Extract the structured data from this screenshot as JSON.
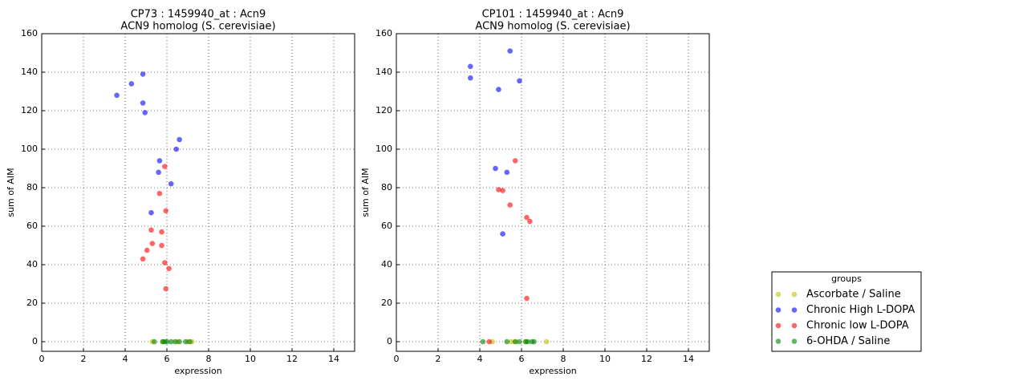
{
  "chart_data": [
    {
      "type": "scatter",
      "title": "CP73 : 1459940_at : Acn9",
      "subtitle": "ACN9 homolog (S. cerevisiae)",
      "x_label": "expression",
      "y_label": "sum of AIM",
      "xlim": [
        0,
        15
      ],
      "ylim": [
        -5,
        160
      ],
      "xticks": [
        0,
        2,
        4,
        6,
        8,
        10,
        12,
        14
      ],
      "yticks": [
        0,
        20,
        40,
        60,
        80,
        100,
        120,
        140,
        160
      ],
      "grid": true,
      "series": [
        {
          "color": "#bfbf00",
          "x": [
            5.3,
            5.8,
            6.5,
            7.0,
            7.2
          ],
          "y": [
            0,
            0,
            0,
            0,
            0
          ]
        },
        {
          "color": "#0000ff",
          "x": [
            3.6,
            4.3,
            4.85,
            4.85,
            4.95,
            6.6,
            6.45,
            5.65,
            5.6,
            6.2,
            5.25
          ],
          "y": [
            128,
            134,
            139,
            124,
            119,
            105,
            100,
            94,
            88,
            82,
            67
          ]
        },
        {
          "color": "#ff0000",
          "x": [
            5.9,
            5.65,
            5.95,
            5.25,
            5.75,
            5.3,
            5.75,
            5.05,
            4.85,
            5.9,
            6.1,
            5.95
          ],
          "y": [
            91,
            77,
            68,
            58,
            57,
            51,
            50,
            47.5,
            43,
            41,
            38,
            27.5
          ]
        },
        {
          "color": "#008000",
          "x": [
            5.4,
            5.8,
            5.9,
            6.0,
            6.2,
            6.4,
            6.6,
            6.9,
            7.1
          ],
          "y": [
            0,
            0,
            0,
            0,
            0,
            0,
            0,
            0,
            0
          ]
        }
      ]
    },
    {
      "type": "scatter",
      "title": "CP101 : 1459940_at : Acn9",
      "subtitle": "ACN9 homolog (S. cerevisiae)",
      "x_label": "expression",
      "y_label": "sum of AIM",
      "xlim": [
        0,
        15
      ],
      "ylim": [
        -5,
        160
      ],
      "xticks": [
        0,
        2,
        4,
        6,
        8,
        10,
        12,
        14
      ],
      "yticks": [
        0,
        20,
        40,
        60,
        80,
        100,
        120,
        140,
        160
      ],
      "grid": true,
      "legend_title": "groups",
      "series": [
        {
          "name": "Ascorbate / Saline",
          "color": "#bfbf00",
          "x": [
            4.6,
            5.5,
            5.7,
            6.2,
            7.2
          ],
          "y": [
            0,
            0,
            0,
            0,
            0
          ]
        },
        {
          "name": "Chronic High L-DOPA",
          "color": "#0000ff",
          "x": [
            3.55,
            3.55,
            5.45,
            4.9,
            5.9,
            4.75,
            5.3,
            5.1
          ],
          "y": [
            143,
            137,
            151,
            131,
            135.5,
            90,
            88,
            56
          ]
        },
        {
          "name": "Chronic low L-DOPA",
          "color": "#ff0000",
          "x": [
            5.7,
            4.9,
            5.1,
            5.45,
            6.25,
            6.4,
            6.25,
            4.45
          ],
          "y": [
            94,
            79,
            78.5,
            71,
            64.5,
            62.5,
            22.5,
            0
          ]
        },
        {
          "name": "6-OHDA / Saline",
          "color": "#008000",
          "x": [
            4.15,
            5.3,
            5.7,
            5.9,
            6.2,
            6.3,
            6.5,
            6.6
          ],
          "y": [
            0,
            0,
            0,
            0,
            0,
            0,
            0,
            0
          ]
        }
      ]
    }
  ]
}
